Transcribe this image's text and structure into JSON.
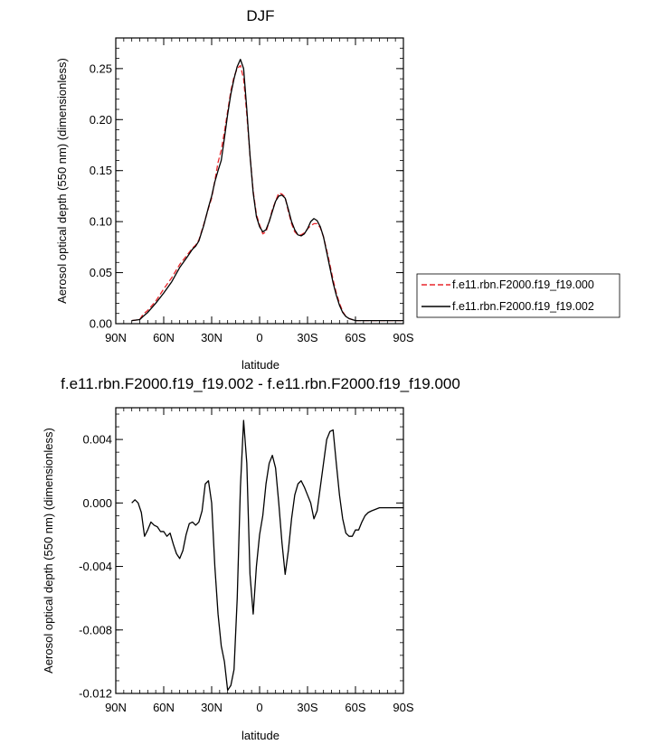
{
  "chart_data": [
    {
      "type": "line",
      "title": "DJF",
      "xlabel": "latitude",
      "ylabel": "Aerosol optical depth (550 nm) (dimensionless)",
      "xlim": [
        90,
        -90
      ],
      "ylim": [
        0,
        0.28
      ],
      "x_ticks": [
        90,
        60,
        30,
        0,
        -30,
        -60,
        -90
      ],
      "x_tick_labels": [
        "90N",
        "60N",
        "30N",
        "0",
        "30S",
        "60S",
        "90S"
      ],
      "y_ticks": [
        0,
        0.05,
        0.1,
        0.15,
        0.2,
        0.25
      ],
      "y_tick_labels": [
        "0.00",
        "0.05",
        "0.10",
        "0.15",
        "0.20",
        "0.25"
      ],
      "legend_position": "right",
      "series": [
        {
          "name": "f.e11.rbn.F2000.f19_f19.000",
          "color": "#e8262b",
          "dash": "dashed",
          "x": [
            80,
            75,
            73,
            70,
            65,
            60,
            55,
            50,
            45,
            42,
            40,
            38,
            35,
            32,
            30,
            28,
            26,
            24,
            22,
            20,
            18,
            16,
            14,
            12,
            10,
            8,
            6,
            4,
            2,
            0,
            -2,
            -4,
            -6,
            -8,
            -10,
            -12,
            -14,
            -16,
            -18,
            -20,
            -22,
            -24,
            -26,
            -28,
            -30,
            -32,
            -34,
            -36,
            -38,
            -40,
            -42,
            -44,
            -46,
            -48,
            -50,
            -52,
            -54,
            -56,
            -58,
            -60,
            -62,
            -65,
            -70,
            -75,
            -80,
            -85,
            -90
          ],
          "y": [
            0.003,
            0.004,
            0.009,
            0.013,
            0.022,
            0.034,
            0.045,
            0.058,
            0.068,
            0.074,
            0.077,
            0.082,
            0.097,
            0.113,
            0.123,
            0.14,
            0.158,
            0.17,
            0.188,
            0.208,
            0.228,
            0.242,
            0.25,
            0.253,
            0.24,
            0.205,
            0.165,
            0.13,
            0.107,
            0.097,
            0.088,
            0.09,
            0.1,
            0.112,
            0.12,
            0.128,
            0.127,
            0.124,
            0.11,
            0.098,
            0.09,
            0.087,
            0.087,
            0.089,
            0.093,
            0.096,
            0.098,
            0.098,
            0.094,
            0.085,
            0.072,
            0.058,
            0.043,
            0.03,
            0.02,
            0.012,
            0.007,
            0.005,
            0.004,
            0.003,
            0.003,
            0.003,
            0.003,
            0.003,
            0.003,
            0.003,
            0.003
          ]
        },
        {
          "name": "f.e11.rbn.F2000.f19_f19.002",
          "color": "#000000",
          "dash": "solid",
          "x": [
            80,
            75,
            73,
            70,
            65,
            60,
            55,
            50,
            45,
            42,
            40,
            38,
            35,
            32,
            30,
            28,
            26,
            24,
            22,
            20,
            18,
            16,
            14,
            12,
            10,
            8,
            6,
            4,
            2,
            0,
            -2,
            -4,
            -6,
            -8,
            -10,
            -12,
            -14,
            -16,
            -18,
            -20,
            -22,
            -24,
            -26,
            -28,
            -30,
            -32,
            -34,
            -36,
            -38,
            -40,
            -42,
            -44,
            -46,
            -48,
            -50,
            -52,
            -54,
            -56,
            -58,
            -60,
            -62,
            -65,
            -70,
            -75,
            -80,
            -85,
            -90
          ],
          "y": [
            0.003,
            0.004,
            0.007,
            0.011,
            0.02,
            0.03,
            0.041,
            0.055,
            0.066,
            0.073,
            0.076,
            0.081,
            0.096,
            0.114,
            0.125,
            0.139,
            0.15,
            0.16,
            0.182,
            0.205,
            0.225,
            0.24,
            0.252,
            0.259,
            0.25,
            0.21,
            0.165,
            0.128,
            0.105,
            0.095,
            0.09,
            0.092,
            0.1,
            0.11,
            0.12,
            0.125,
            0.126,
            0.123,
            0.112,
            0.1,
            0.092,
            0.087,
            0.086,
            0.088,
            0.093,
            0.1,
            0.103,
            0.101,
            0.095,
            0.085,
            0.07,
            0.055,
            0.04,
            0.028,
            0.018,
            0.011,
            0.007,
            0.005,
            0.004,
            0.003,
            0.003,
            0.003,
            0.003,
            0.003,
            0.003,
            0.003,
            0.003
          ]
        }
      ]
    },
    {
      "type": "line",
      "title": "f.e11.rbn.F2000.f19_f19.002 - f.e11.rbn.F2000.f19_f19.000",
      "xlabel": "latitude",
      "ylabel": "Aerosol optical depth (550 nm) (dimensionless)",
      "xlim": [
        90,
        -90
      ],
      "ylim": [
        -0.012,
        0.006
      ],
      "x_ticks": [
        90,
        60,
        30,
        0,
        -30,
        -60,
        -90
      ],
      "x_tick_labels": [
        "90N",
        "60N",
        "30N",
        "0",
        "30S",
        "60S",
        "90S"
      ],
      "y_ticks": [
        -0.012,
        -0.008,
        -0.004,
        0,
        0.004
      ],
      "y_tick_labels": [
        "-0.012",
        "-0.008",
        "-0.004",
        "0.000",
        "0.004"
      ],
      "series": [
        {
          "name": "",
          "color": "#000000",
          "dash": "solid",
          "x": [
            80,
            78,
            76,
            74,
            72,
            70,
            68,
            66,
            64,
            62,
            60,
            58,
            56,
            54,
            52,
            50,
            48,
            46,
            44,
            42,
            40,
            38,
            36,
            34,
            32,
            30,
            28,
            26,
            24,
            22,
            20,
            18,
            16,
            14,
            12,
            10,
            8,
            6,
            4,
            2,
            0,
            -2,
            -4,
            -6,
            -8,
            -10,
            -12,
            -14,
            -16,
            -18,
            -20,
            -22,
            -24,
            -26,
            -28,
            -30,
            -32,
            -34,
            -36,
            -38,
            -40,
            -42,
            -44,
            -46,
            -48,
            -50,
            -52,
            -54,
            -56,
            -58,
            -60,
            -62,
            -64,
            -66,
            -68,
            -70,
            -75,
            -80,
            -85,
            -90
          ],
          "y": [
            0.0,
            0.0002,
            0.0,
            -0.0006,
            -0.0021,
            -0.0017,
            -0.0012,
            -0.0014,
            -0.0015,
            -0.0018,
            -0.0018,
            -0.0021,
            -0.0019,
            -0.0026,
            -0.0032,
            -0.0035,
            -0.003,
            -0.002,
            -0.0013,
            -0.0012,
            -0.0014,
            -0.0012,
            -0.0005,
            0.0012,
            0.0014,
            0.0,
            -0.004,
            -0.007,
            -0.009,
            -0.01,
            -0.0118,
            -0.0115,
            -0.0105,
            -0.006,
            0.001,
            0.0052,
            0.0025,
            -0.0045,
            -0.007,
            -0.004,
            -0.002,
            -0.0008,
            0.0012,
            0.0025,
            0.003,
            0.0022,
            0.0,
            -0.0025,
            -0.0045,
            -0.003,
            -0.001,
            0.0005,
            0.0012,
            0.0014,
            0.001,
            0.0005,
            0.0,
            -0.001,
            -0.0005,
            0.001,
            0.0025,
            0.004,
            0.0045,
            0.0046,
            0.0025,
            0.0005,
            -0.001,
            -0.0019,
            -0.0021,
            -0.0021,
            -0.0017,
            -0.0017,
            -0.0012,
            -0.0008,
            -0.0006,
            -0.0005,
            -0.0003,
            -0.0003,
            -0.0003,
            -0.0003
          ]
        }
      ]
    }
  ]
}
